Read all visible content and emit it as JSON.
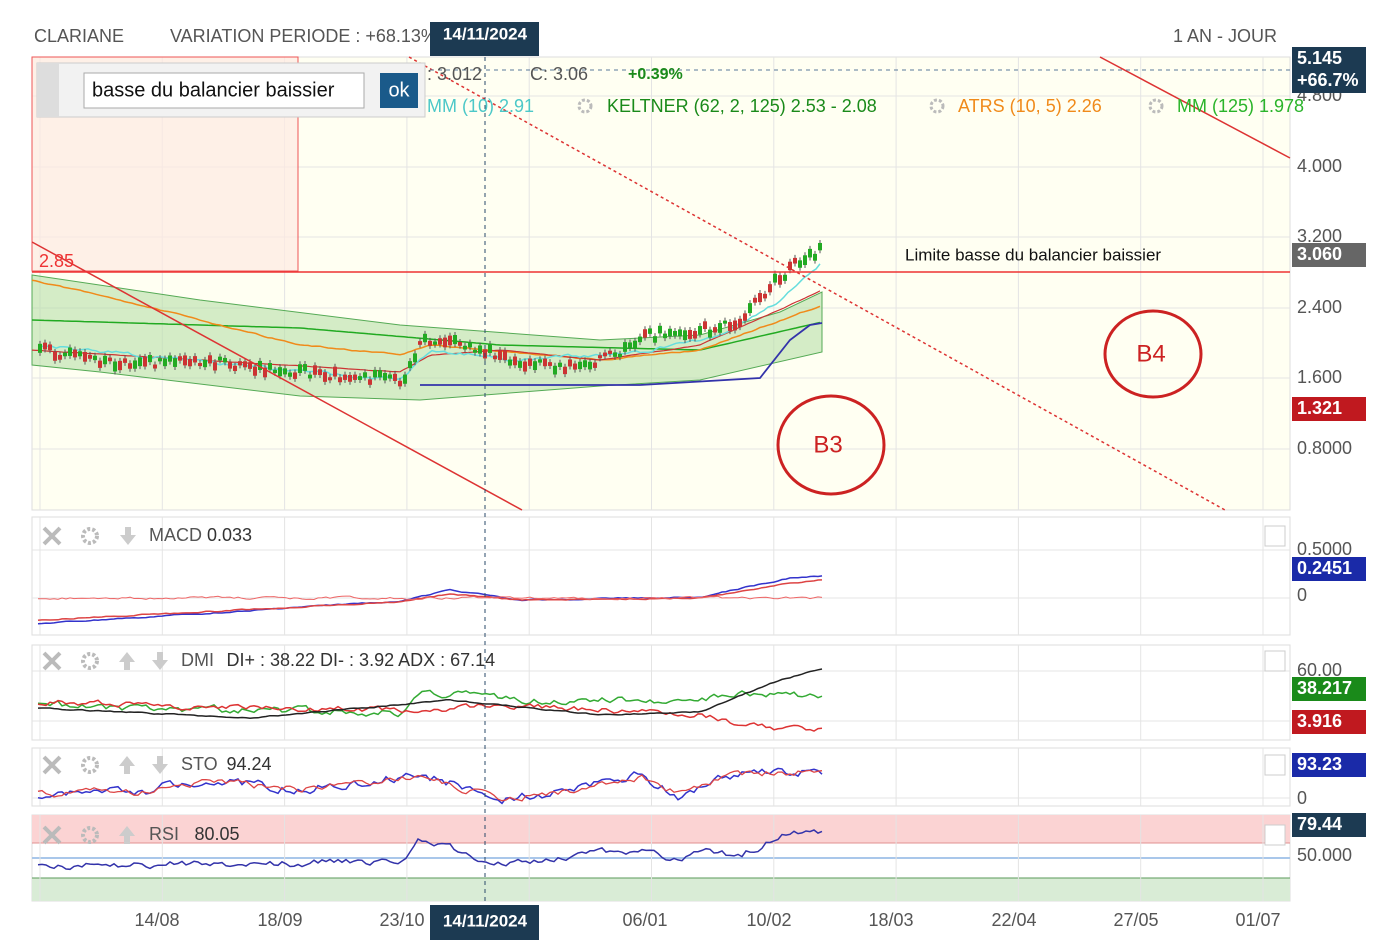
{
  "header": {
    "symbol": "CLARIANE",
    "variation": "VARIATION PERIODE : +68.13%",
    "period": "1 AN - JOUR",
    "crosshair_date": "14/11/2024"
  },
  "input": {
    "value": "basse du balancier baissier",
    "button": "ok"
  },
  "legend": {
    "open": ": 3.012",
    "close": "C: 3.06",
    "change": "+0.39%",
    "mm10": "MM (10) 2.91",
    "keltner": "KELTNER (62, 2, 125) 2.53 - 2.08",
    "atrs": "ATRS (10, 5) 2.26",
    "mm125": "MM (125) 1.978"
  },
  "price_axis": {
    "ticks": [
      "4.800",
      "4.000",
      "3.200",
      "2.400",
      "1.600",
      "0.8000"
    ],
    "badges": [
      "5.145",
      "+66.7%",
      "3.060",
      "1.321"
    ]
  },
  "annotations": {
    "level": "2.85",
    "line_label": "Limite basse du balancier baissier",
    "b3": "B3",
    "b4": "B4"
  },
  "panels": [
    {
      "name": "MACD",
      "value": "0.033",
      "ticks": [
        "0.5000",
        "0"
      ],
      "badges": [
        "0.2451"
      ]
    },
    {
      "name": "DMI",
      "value": "DI+ : 38.22 DI- : 3.92 ADX : 67.14",
      "ticks": [
        "60.00"
      ],
      "badges": [
        "38.217",
        "3.916"
      ]
    },
    {
      "name": "STO",
      "value": "94.24",
      "ticks": [
        "0"
      ],
      "badges": [
        "93.23"
      ]
    },
    {
      "name": "RSI",
      "value": "80.05",
      "ticks": [
        "50.000"
      ],
      "badges": [
        "79.44"
      ]
    }
  ],
  "x_axis": {
    "labels": [
      "14/08",
      "18/09",
      "23/10",
      "06/01",
      "10/02",
      "18/03",
      "22/04",
      "27/05",
      "01/07"
    ]
  }
}
